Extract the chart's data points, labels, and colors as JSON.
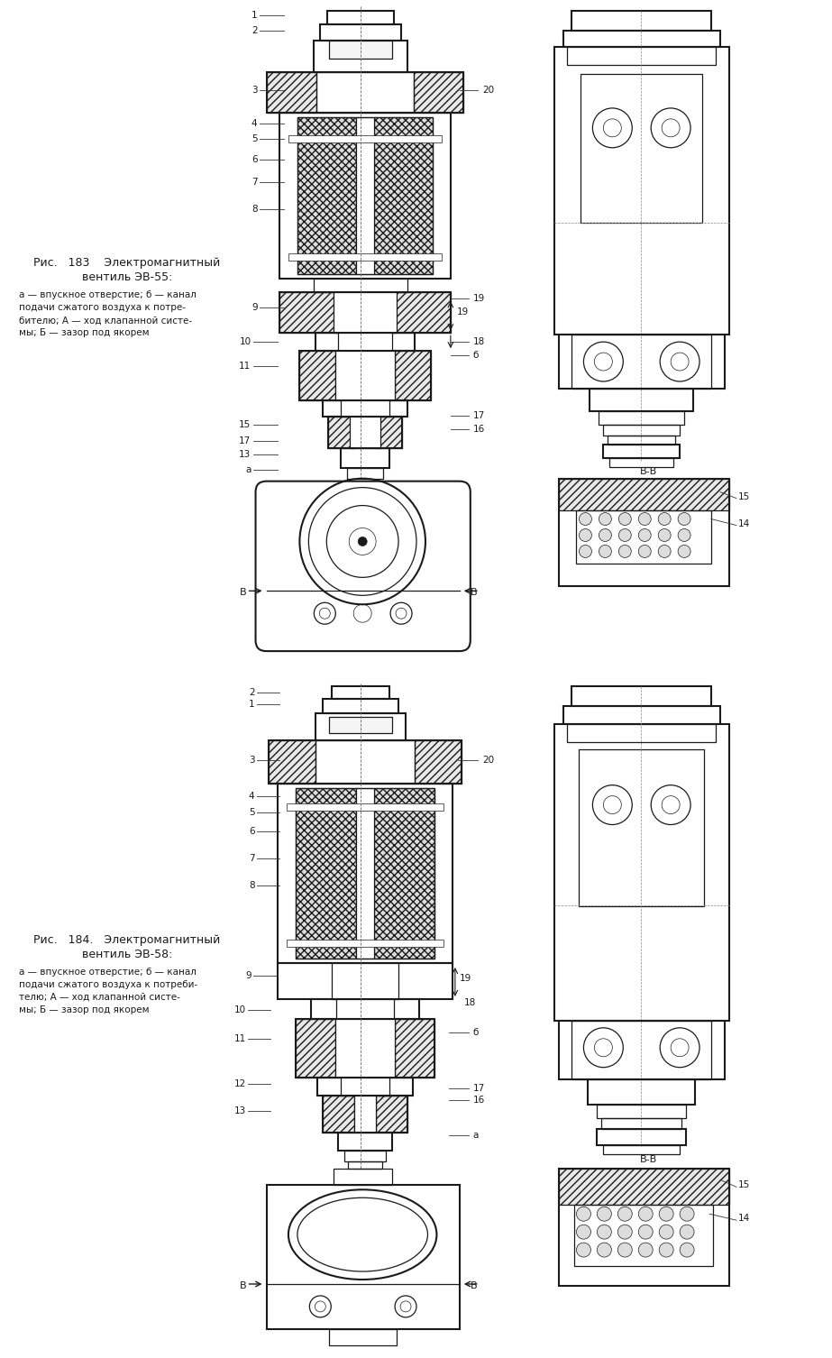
{
  "bg_color": "#ffffff",
  "lc": "#1a1a1a",
  "fig_width": 9.23,
  "fig_height": 15.06,
  "title1_line1": "Рис.   183    Электромагнитный",
  "title1_line2": "вентиль ЭВ-55:",
  "cap1_l1": "а — впускное отверстие; б — канал",
  "cap1_l2": "подачи сжатого воздуха к потре-",
  "cap1_l3": "бителю; А — ход клапанной систе-",
  "cap1_l4": "мы; Б — зазор под якорем",
  "title2_line1": "Рис.   184.   Электромагнитный",
  "title2_line2": "вентиль ЭВ-58:",
  "cap2_l1": "а — впускное отверстие; б — канал",
  "cap2_l2": "подачи сжатого воздуха к потреби-",
  "cap2_l3": "телю; А — ход клапанной систе-",
  "cap2_l4": "мы; Б — зазор под якорем"
}
